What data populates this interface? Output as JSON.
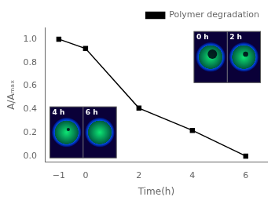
{
  "chart_data": {
    "type": "line",
    "x": [
      -1,
      0,
      2,
      4,
      6
    ],
    "series": [
      {
        "name": "Polymer degradation",
        "color": "black",
        "values": [
          1.0,
          0.92,
          0.41,
          0.22,
          0.0
        ],
        "marker": "square",
        "line_style": "solid"
      }
    ],
    "xlabel": "Time(h)",
    "ylabel": "A/Aₘₐₓ",
    "xlim": [
      -1.5,
      6.8
    ],
    "ylim": [
      -0.05,
      1.1
    ],
    "xticks": [
      {
        "value": -1,
        "label": "−1"
      },
      0,
      2,
      4,
      6
    ],
    "yticks": [
      {
        "value": 0.0,
        "label": "0.0"
      },
      0.2,
      0.4,
      0.6,
      0.8,
      {
        "value": 1.0,
        "label": "1.0"
      }
    ],
    "grid": false,
    "legend": "upper right",
    "annotations": [
      "0 h",
      "2 h",
      "4 h",
      "6 h"
    ]
  }
}
